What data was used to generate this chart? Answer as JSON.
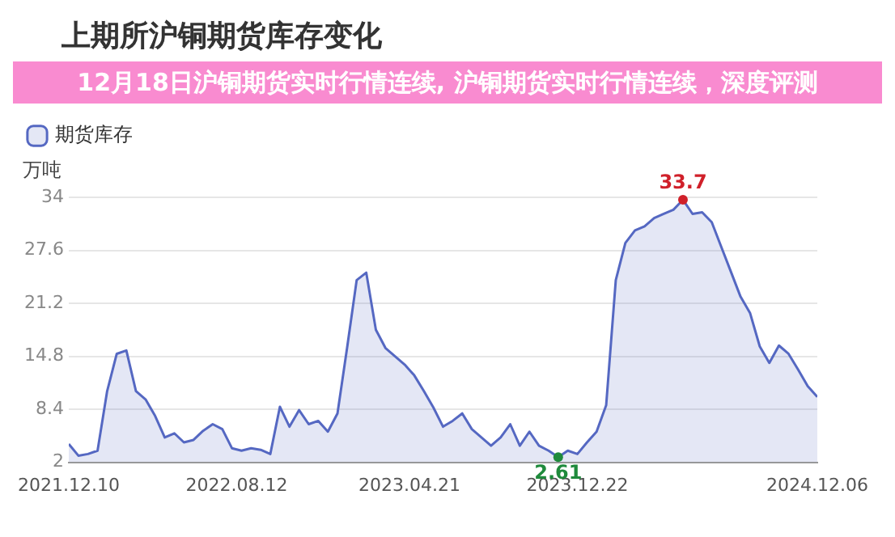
{
  "chart_data": {
    "type": "area",
    "title": "上期所沪铜期货库存变化",
    "subtitle": "12月18日沪铜期货实时行情连续, 沪铜期货实时行情连续，深度评测",
    "ylabel": "万吨",
    "x": [
      "2021-12-10",
      "2021-12-24",
      "2022-01-07",
      "2022-01-21",
      "2022-02-04",
      "2022-02-18",
      "2022-03-04",
      "2022-03-18",
      "2022-04-01",
      "2022-04-15",
      "2022-04-29",
      "2022-05-13",
      "2022-05-27",
      "2022-06-10",
      "2022-06-24",
      "2022-07-08",
      "2022-07-22",
      "2022-08-05",
      "2022-08-19",
      "2022-09-02",
      "2022-09-16",
      "2022-09-30",
      "2022-10-14",
      "2022-10-28",
      "2022-11-11",
      "2022-11-25",
      "2022-12-09",
      "2022-12-23",
      "2023-01-06",
      "2023-01-20",
      "2023-02-03",
      "2023-02-17",
      "2023-03-03",
      "2023-03-17",
      "2023-03-31",
      "2023-04-14",
      "2023-04-28",
      "2023-05-12",
      "2023-05-26",
      "2023-06-09",
      "2023-06-23",
      "2023-07-07",
      "2023-07-21",
      "2023-08-04",
      "2023-08-18",
      "2023-09-01",
      "2023-09-15",
      "2023-09-29",
      "2023-10-13",
      "2023-10-27",
      "2023-11-10",
      "2023-11-24",
      "2023-12-08",
      "2023-12-22",
      "2024-01-05",
      "2024-01-19",
      "2024-02-02",
      "2024-02-16",
      "2024-03-01",
      "2024-03-15",
      "2024-03-29",
      "2024-04-12",
      "2024-04-26",
      "2024-05-10",
      "2024-05-24",
      "2024-06-07",
      "2024-06-21",
      "2024-07-05",
      "2024-07-19",
      "2024-08-02",
      "2024-08-16",
      "2024-08-30",
      "2024-09-13",
      "2024-09-27",
      "2024-10-11",
      "2024-10-25",
      "2024-11-08",
      "2024-11-22",
      "2024-12-06"
    ],
    "series": [
      {
        "name": "期货库存",
        "color": "#5568c2",
        "values": [
          4.2,
          2.8,
          3.0,
          3.4,
          10.6,
          15.1,
          15.5,
          10.6,
          9.6,
          7.6,
          5.0,
          5.5,
          4.4,
          4.7,
          5.8,
          6.6,
          6.0,
          3.7,
          3.4,
          3.7,
          3.5,
          3.0,
          8.7,
          6.3,
          8.3,
          6.6,
          7.0,
          5.7,
          7.9,
          15.8,
          24.0,
          24.9,
          18.0,
          15.8,
          14.8,
          13.8,
          12.5,
          10.6,
          8.6,
          6.3,
          7.0,
          7.9,
          6.0,
          5.0,
          4.0,
          5.0,
          6.6,
          4.0,
          5.7,
          4.0,
          3.4,
          2.61,
          3.4,
          3.0,
          4.4,
          5.7,
          8.9,
          24.0,
          28.5,
          30.0,
          30.5,
          31.5,
          32.0,
          32.5,
          33.7,
          32.0,
          32.2,
          31.0,
          28.0,
          25.0,
          22.0,
          20.0,
          16.0,
          14.0,
          16.1,
          15.1,
          13.2,
          11.2,
          9.9
        ]
      }
    ],
    "xlim": [
      "2021-12-10",
      "2024-12-06"
    ],
    "xticks": [
      {
        "value": "2021-12-10",
        "label": "2021.12.10"
      },
      {
        "value": "2022-08-12",
        "label": "2022.08.12"
      },
      {
        "value": "2023-04-21",
        "label": "2023.04.21"
      },
      {
        "value": "2023-12-22",
        "label": "2023.12.22"
      },
      {
        "value": "2024-12-06",
        "label": "2024.12.06"
      }
    ],
    "ylim": [
      2,
      34
    ],
    "yticks": [
      2,
      8.4,
      14.8,
      21.2,
      27.6,
      34
    ],
    "annotations": [
      {
        "text": "33.7",
        "x": "2024-05-24",
        "y": 33.7
      },
      {
        "text": "2.61",
        "x": "2023-11-24",
        "y": 2.61
      }
    ],
    "grid": "y",
    "legend": "top left"
  }
}
